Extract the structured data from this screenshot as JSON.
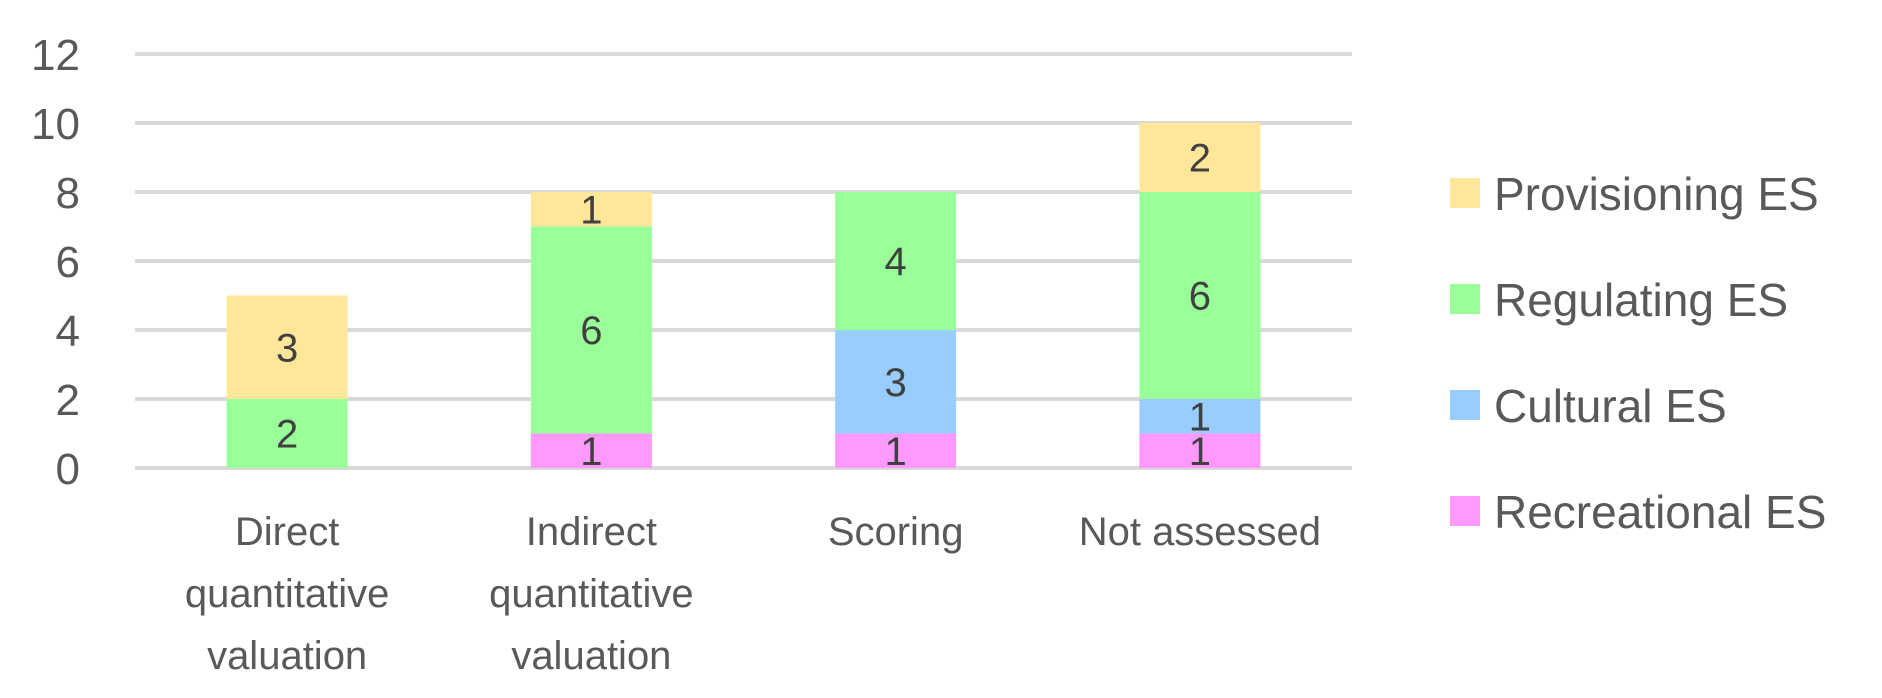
{
  "chart_data": {
    "type": "bar",
    "stacked": true,
    "title": "",
    "xlabel": "",
    "ylabel": "",
    "ylim": [
      0,
      12
    ],
    "yticks": [
      0,
      2,
      4,
      6,
      8,
      10,
      12
    ],
    "grid": true,
    "legend_position": "right",
    "categories": [
      [
        "Direct",
        "quantitative",
        "valuation"
      ],
      [
        "Indirect",
        "quantitative",
        "valuation"
      ],
      [
        "Scoring"
      ],
      [
        "Not assessed"
      ]
    ],
    "series": [
      {
        "name": "Recreational ES",
        "color": "#ff99ff",
        "values": [
          0,
          1,
          1,
          1
        ]
      },
      {
        "name": "Cultural ES",
        "color": "#99ccff",
        "values": [
          0,
          0,
          3,
          1
        ]
      },
      {
        "name": "Regulating ES",
        "color": "#99ff99",
        "values": [
          2,
          6,
          4,
          6
        ]
      },
      {
        "name": "Provisioning ES",
        "color": "#ffe699",
        "values": [
          3,
          1,
          0,
          2
        ]
      }
    ],
    "legend_order": [
      "Provisioning ES",
      "Regulating ES",
      "Cultural ES",
      "Recreational ES"
    ]
  }
}
